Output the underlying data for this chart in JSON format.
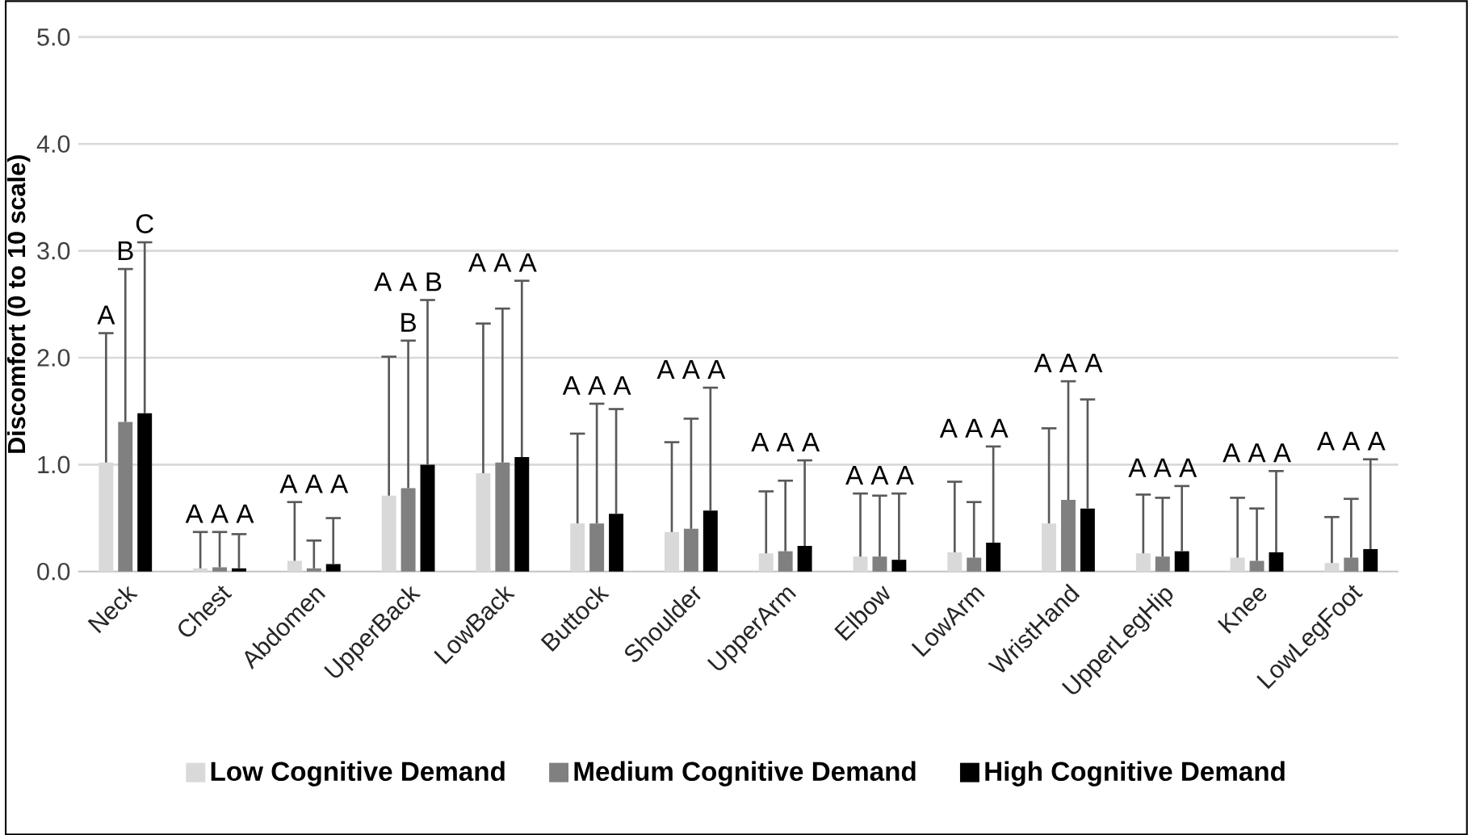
{
  "chart_data": {
    "type": "bar",
    "ylabel": "Discomfort  (0 to 10 scale)",
    "categories": [
      "Neck",
      "Chest",
      "Abdomen",
      "UpperBack",
      "LowBack",
      "Buttock",
      "Shoulder",
      "UpperArm",
      "Elbow",
      "LowArm",
      "WristHand",
      "UpperLegHip",
      "Knee",
      "LowLegFoot"
    ],
    "series": [
      {
        "name": "Low Cognitive Demand",
        "color": "#d9d9d9",
        "values": [
          1.02,
          0.03,
          0.1,
          0.71,
          0.92,
          0.45,
          0.37,
          0.17,
          0.14,
          0.18,
          0.45,
          0.17,
          0.13,
          0.08
        ],
        "errors": [
          [
            1.02,
            2.23
          ],
          [
            0.03,
            0.37
          ],
          [
            0.1,
            0.65
          ],
          [
            0.71,
            2.01
          ],
          [
            0.92,
            2.32
          ],
          [
            0.45,
            1.29
          ],
          [
            0.37,
            1.21
          ],
          [
            0.17,
            0.75
          ],
          [
            0.14,
            0.73
          ],
          [
            0.18,
            0.84
          ],
          [
            0.45,
            1.34
          ],
          [
            0.17,
            0.72
          ],
          [
            0.13,
            0.69
          ],
          [
            0.08,
            0.51
          ]
        ]
      },
      {
        "name": "Medium Cognitive Demand",
        "color": "#808080",
        "values": [
          1.4,
          0.04,
          0.03,
          0.78,
          1.02,
          0.45,
          0.4,
          0.19,
          0.14,
          0.13,
          0.67,
          0.14,
          0.1,
          0.13
        ],
        "errors": [
          [
            1.4,
            2.83
          ],
          [
            0.04,
            0.37
          ],
          [
            0.03,
            0.29
          ],
          [
            0.78,
            2.16
          ],
          [
            1.02,
            2.46
          ],
          [
            0.45,
            1.57
          ],
          [
            0.4,
            1.43
          ],
          [
            0.19,
            0.85
          ],
          [
            0.14,
            0.71
          ],
          [
            0.13,
            0.65
          ],
          [
            0.67,
            1.78
          ],
          [
            0.14,
            0.69
          ],
          [
            0.1,
            0.59
          ],
          [
            0.13,
            0.68
          ]
        ]
      },
      {
        "name": "High Cognitive Demand",
        "color": "#000000",
        "values": [
          1.48,
          0.03,
          0.07,
          1.0,
          1.07,
          0.54,
          0.57,
          0.24,
          0.11,
          0.27,
          0.59,
          0.19,
          0.18,
          0.21
        ],
        "errors": [
          [
            1.48,
            3.08
          ],
          [
            0.03,
            0.35
          ],
          [
            0.07,
            0.5
          ],
          [
            1.0,
            2.54
          ],
          [
            1.07,
            2.72
          ],
          [
            0.54,
            1.52
          ],
          [
            0.57,
            1.72
          ],
          [
            0.24,
            1.04
          ],
          [
            0.11,
            0.73
          ],
          [
            0.27,
            1.17
          ],
          [
            0.59,
            1.61
          ],
          [
            0.19,
            0.8
          ],
          [
            0.18,
            0.94
          ],
          [
            0.21,
            1.05
          ]
        ]
      }
    ],
    "ylim": [
      0,
      5
    ],
    "yticks": [
      {
        "value": 0,
        "label": "0.0"
      },
      {
        "value": 1,
        "label": "1.0"
      },
      {
        "value": 2,
        "label": "2.0"
      },
      {
        "value": 3,
        "label": "3.0"
      },
      {
        "value": 4,
        "label": "4.0"
      },
      {
        "value": 5,
        "label": "5.0"
      }
    ],
    "grid": "y",
    "legend": "bottom",
    "annotations": [
      "A",
      "B",
      "C",
      "A A A",
      "A A A",
      "A A B",
      "B",
      "A A A",
      "A A A",
      "A A A",
      "A A A",
      "A A A",
      "A A A",
      "A A A",
      "A A A",
      "A A A",
      "A A A"
    ]
  }
}
